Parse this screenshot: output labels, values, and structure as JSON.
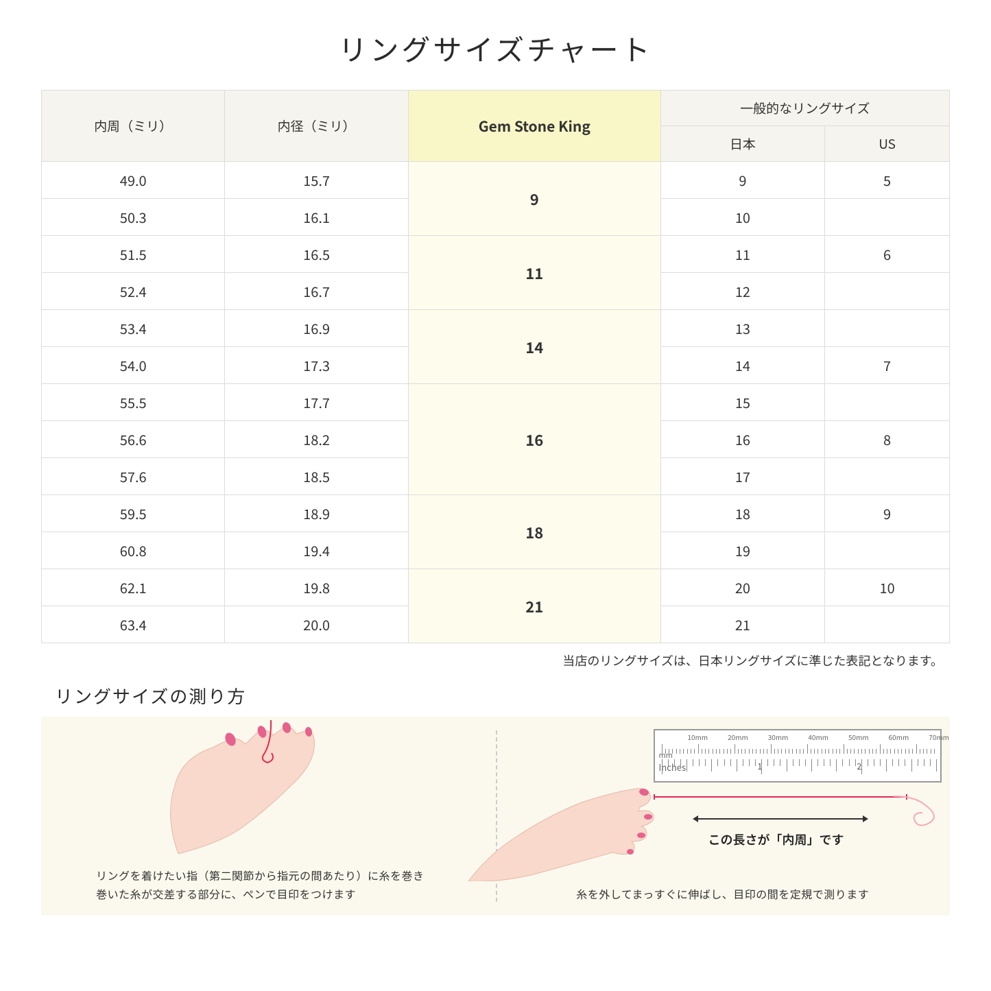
{
  "title": "リングサイズチャート",
  "headers": {
    "circumference": "内周（ミリ）",
    "diameter": "内径（ミリ）",
    "gsk": "Gem Stone King",
    "general": "一般的なリングサイズ",
    "japan": "日本",
    "us": "US"
  },
  "groups": [
    {
      "gsk": "9",
      "rows": [
        {
          "c": "49.0",
          "d": "15.7",
          "jp": "9",
          "us": "5"
        },
        {
          "c": "50.3",
          "d": "16.1",
          "jp": "10",
          "us": ""
        }
      ]
    },
    {
      "gsk": "11",
      "rows": [
        {
          "c": "51.5",
          "d": "16.5",
          "jp": "11",
          "us": "6"
        },
        {
          "c": "52.4",
          "d": "16.7",
          "jp": "12",
          "us": ""
        }
      ]
    },
    {
      "gsk": "14",
      "rows": [
        {
          "c": "53.4",
          "d": "16.9",
          "jp": "13",
          "us": ""
        },
        {
          "c": "54.0",
          "d": "17.3",
          "jp": "14",
          "us": "7"
        }
      ]
    },
    {
      "gsk": "16",
      "rows": [
        {
          "c": "55.5",
          "d": "17.7",
          "jp": "15",
          "us": ""
        },
        {
          "c": "56.6",
          "d": "18.2",
          "jp": "16",
          "us": "8"
        },
        {
          "c": "57.6",
          "d": "18.5",
          "jp": "17",
          "us": ""
        }
      ]
    },
    {
      "gsk": "18",
      "rows": [
        {
          "c": "59.5",
          "d": "18.9",
          "jp": "18",
          "us": "9"
        },
        {
          "c": "60.8",
          "d": "19.4",
          "jp": "19",
          "us": ""
        }
      ]
    },
    {
      "gsk": "21",
      "rows": [
        {
          "c": "62.1",
          "d": "19.8",
          "jp": "20",
          "us": "10"
        },
        {
          "c": "63.4",
          "d": "20.0",
          "jp": "21",
          "us": ""
        }
      ]
    }
  ],
  "note": "当店のリングサイズは、日本リングサイズに準じた表記となります。",
  "subheading": "リングサイズの測り方",
  "instructions": {
    "left_line1": "リングを着けたい指（第二関節から指元の間あたり）に糸を巻き",
    "left_line2": "巻いた糸が交差する部分に、ペンで目印をつけます",
    "right": "糸を外してまっすぐに伸ばし、目印の間を定規で測ります",
    "arrow_label": "この長さが「内周」です"
  },
  "ruler": {
    "mm_unit": "mm",
    "in_unit": "Inches",
    "mm_labels": [
      "10mm",
      "20mm",
      "30mm",
      "40mm",
      "50mm",
      "60mm",
      "70mm"
    ],
    "in_labels": [
      "1",
      "2"
    ]
  },
  "colors": {
    "header_bg": "#f6f4ee",
    "gsk_header_bg": "#f9f7c7",
    "gsk_cell_bg": "#fefded",
    "panel_bg": "#fbf9ed",
    "border": "#dcdcdc",
    "text": "#333333",
    "accent_red": "#e62850",
    "skin": "#f8d9cc",
    "nail": "#e6628c"
  }
}
